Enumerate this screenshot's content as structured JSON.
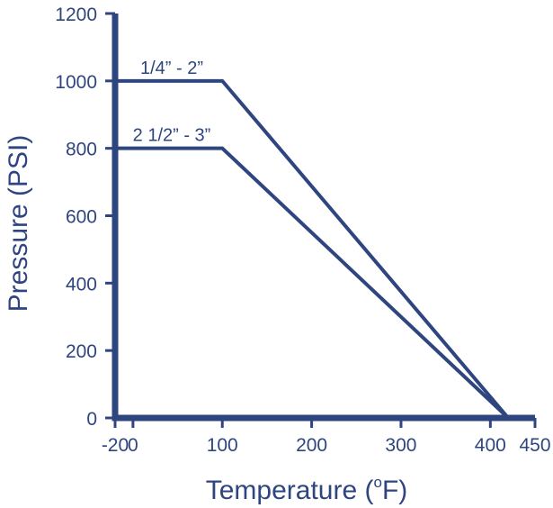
{
  "chart_data": {
    "type": "line",
    "title": "",
    "xlabel": "Temperature (",
    "xlabel_sup": "o",
    "xlabel_end": "F)",
    "ylabel": "Pressure (PSI)",
    "xlim": [
      -20,
      450
    ],
    "ylim": [
      0,
      1200
    ],
    "xticks": [
      -20,
      0,
      100,
      200,
      300,
      400,
      450
    ],
    "yticks": [
      0,
      200,
      400,
      600,
      800,
      1000,
      1200
    ],
    "grid": false,
    "color": "#2e4580",
    "series": [
      {
        "name": "1/4” - 2”",
        "x": [
          -20,
          100,
          420
        ],
        "y": [
          1000,
          1000,
          0
        ]
      },
      {
        "name": "2 1/2” - 3”",
        "x": [
          -20,
          100,
          420
        ],
        "y": [
          800,
          800,
          0
        ]
      }
    ]
  }
}
